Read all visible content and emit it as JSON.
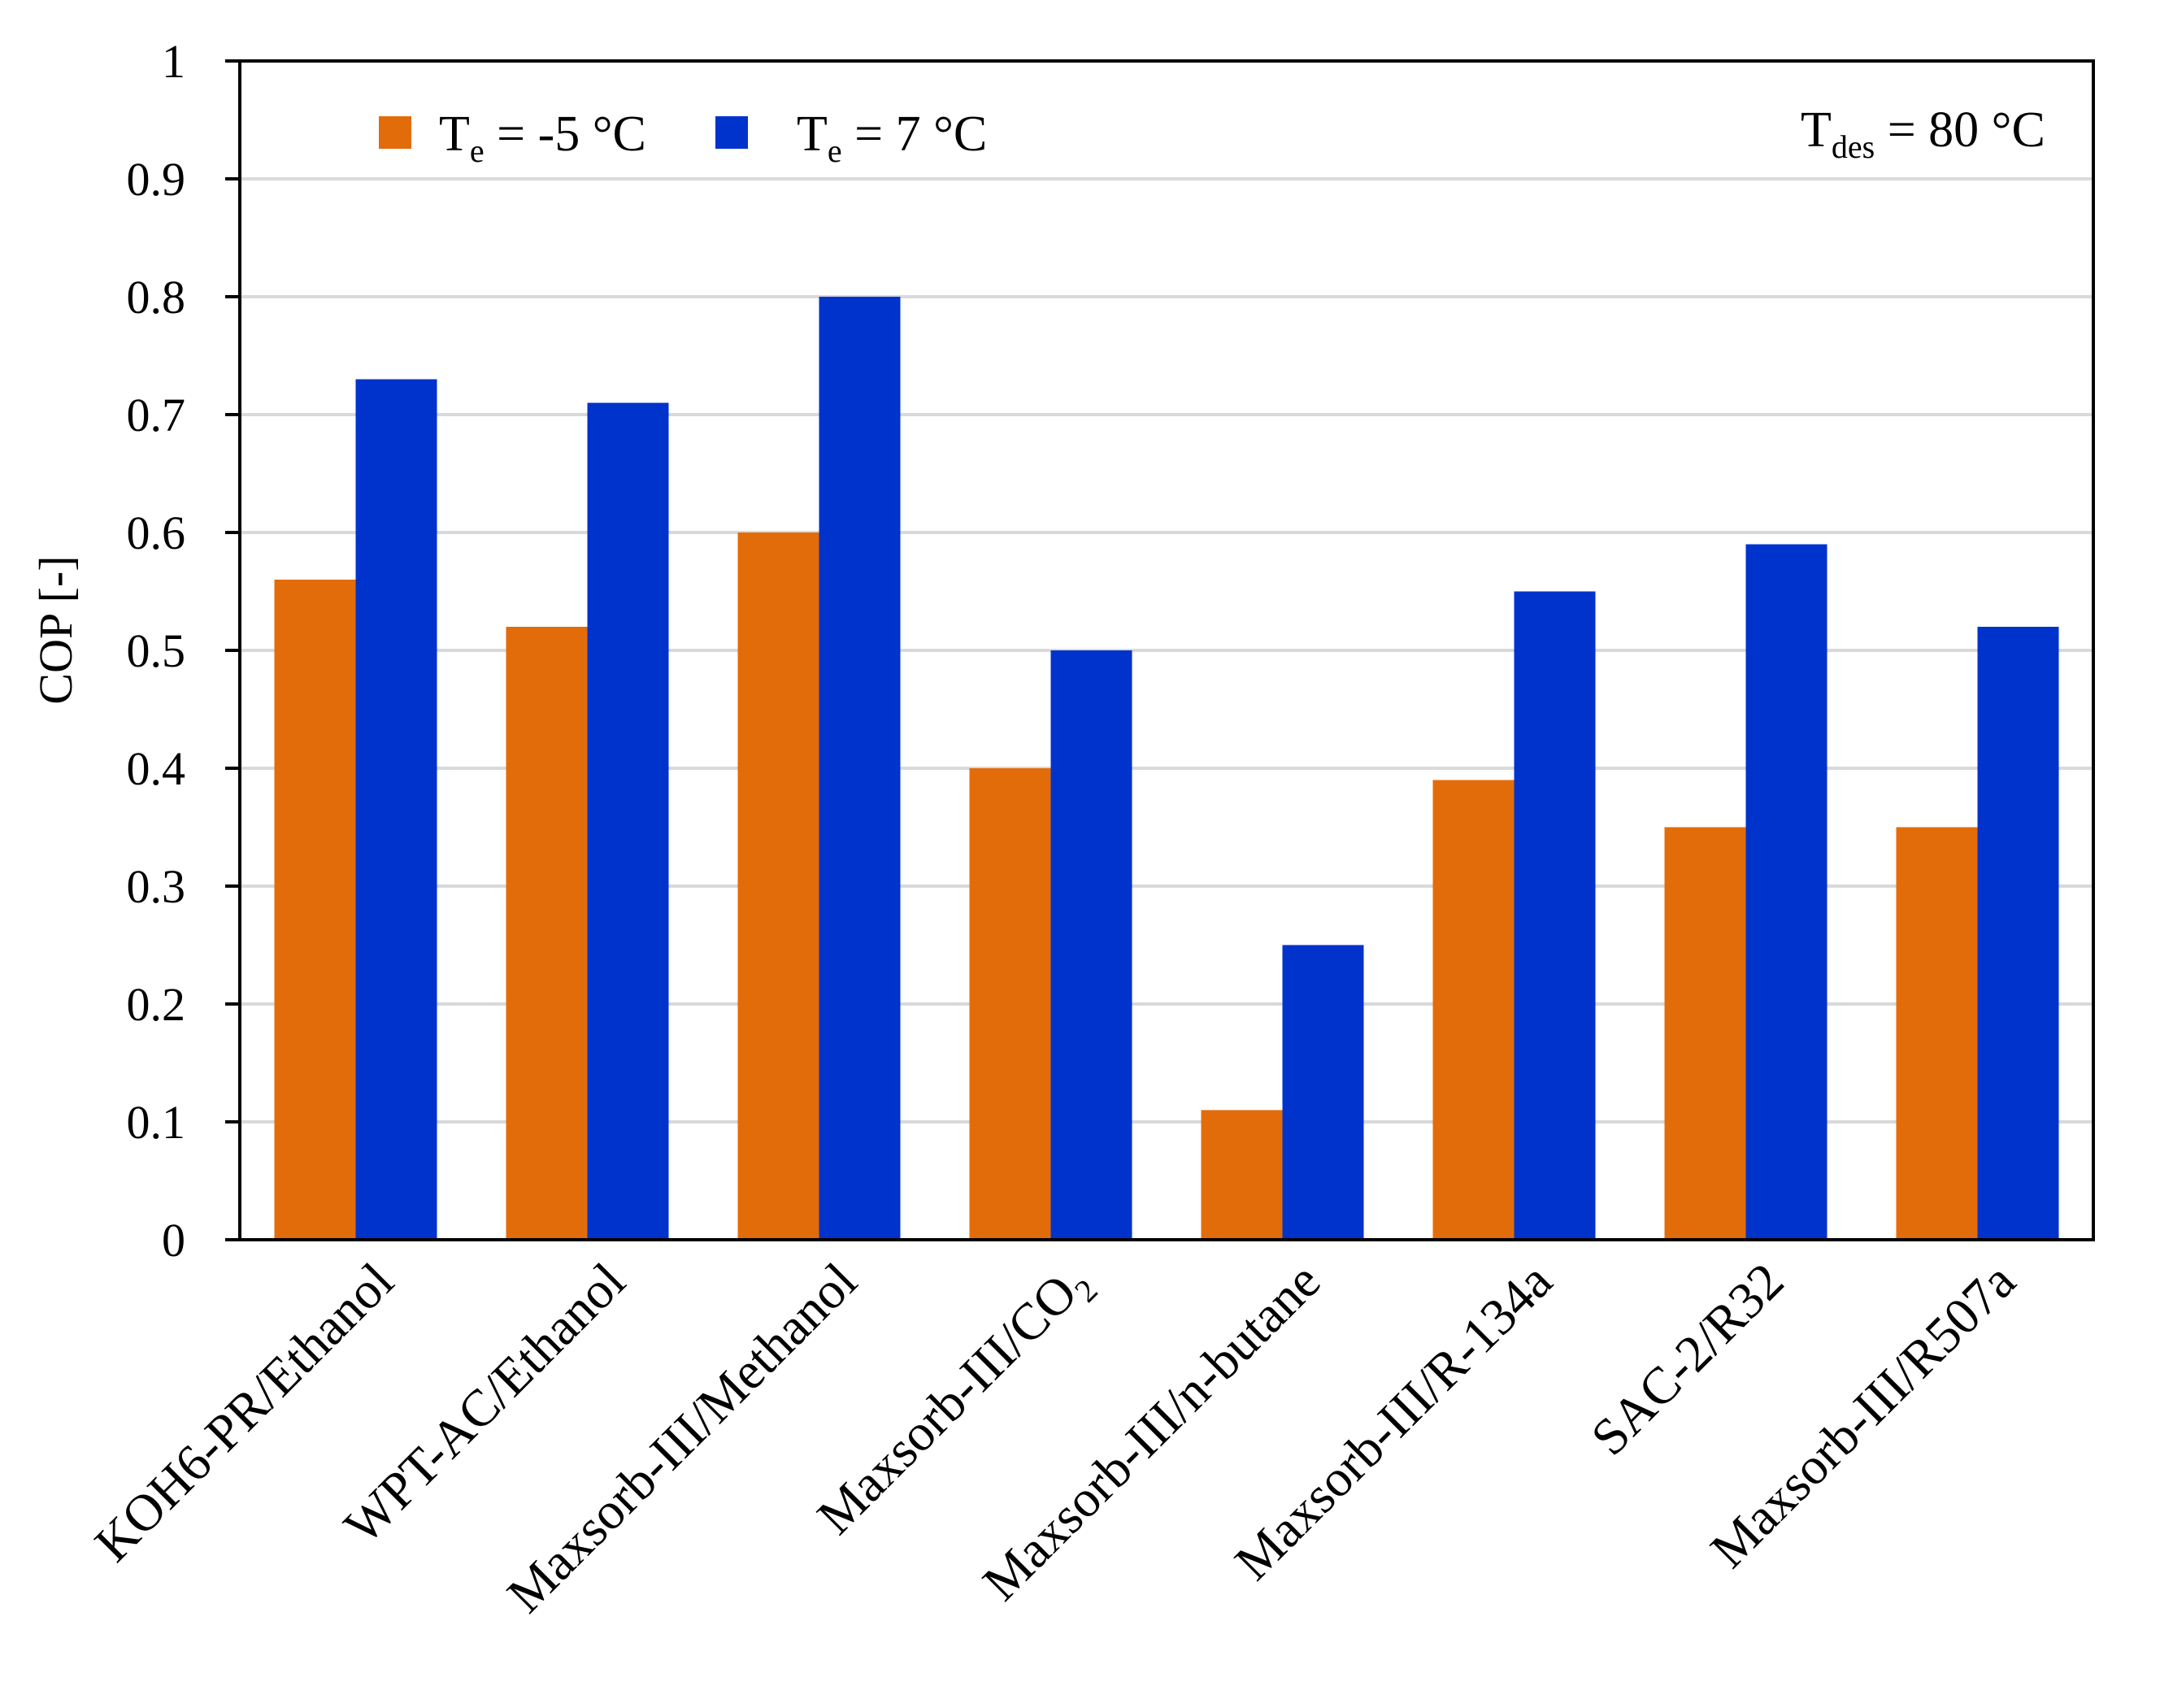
{
  "chart_data": {
    "type": "bar",
    "ylabel": "COP [-]",
    "xlabel": "",
    "ylim": [
      0,
      1
    ],
    "yticks": [
      "0",
      "0.1",
      "0.2",
      "0.3",
      "0.4",
      "0.5",
      "0.6",
      "0.7",
      "0.8",
      "0.9",
      "1"
    ],
    "grid": "horizontal",
    "legend_position": "top-left",
    "categories": [
      {
        "main": "KOH6-PR/Ethanol",
        "sub": ""
      },
      {
        "main": "WPT-AC/Ethanol",
        "sub": ""
      },
      {
        "main": "Maxsorb-III/Methanol",
        "sub": ""
      },
      {
        "main": "Maxsorb-III/CO",
        "sub": "2"
      },
      {
        "main": "Maxsorb-III/n-butane",
        "sub": ""
      },
      {
        "main": "Maxsorb-III/R-134a",
        "sub": ""
      },
      {
        "main": "SAC-2/R32",
        "sub": ""
      },
      {
        "main": "Maxsorb-III/R507a",
        "sub": ""
      }
    ],
    "series": [
      {
        "name": {
          "main": "T",
          "sub": "e",
          "rest": " = -5 °C"
        },
        "color": "#E36C0A",
        "values": [
          0.56,
          0.52,
          0.6,
          0.4,
          0.11,
          0.39,
          0.35,
          0.35
        ]
      },
      {
        "name": {
          "main": "T",
          "sub": "e",
          "rest": " = 7 °C"
        },
        "color": "#0033CC",
        "values": [
          0.73,
          0.71,
          0.8,
          0.5,
          0.25,
          0.55,
          0.59,
          0.52
        ]
      }
    ],
    "annotation": {
      "main": "T",
      "sub": "des",
      "rest": " = 80 °C"
    }
  }
}
